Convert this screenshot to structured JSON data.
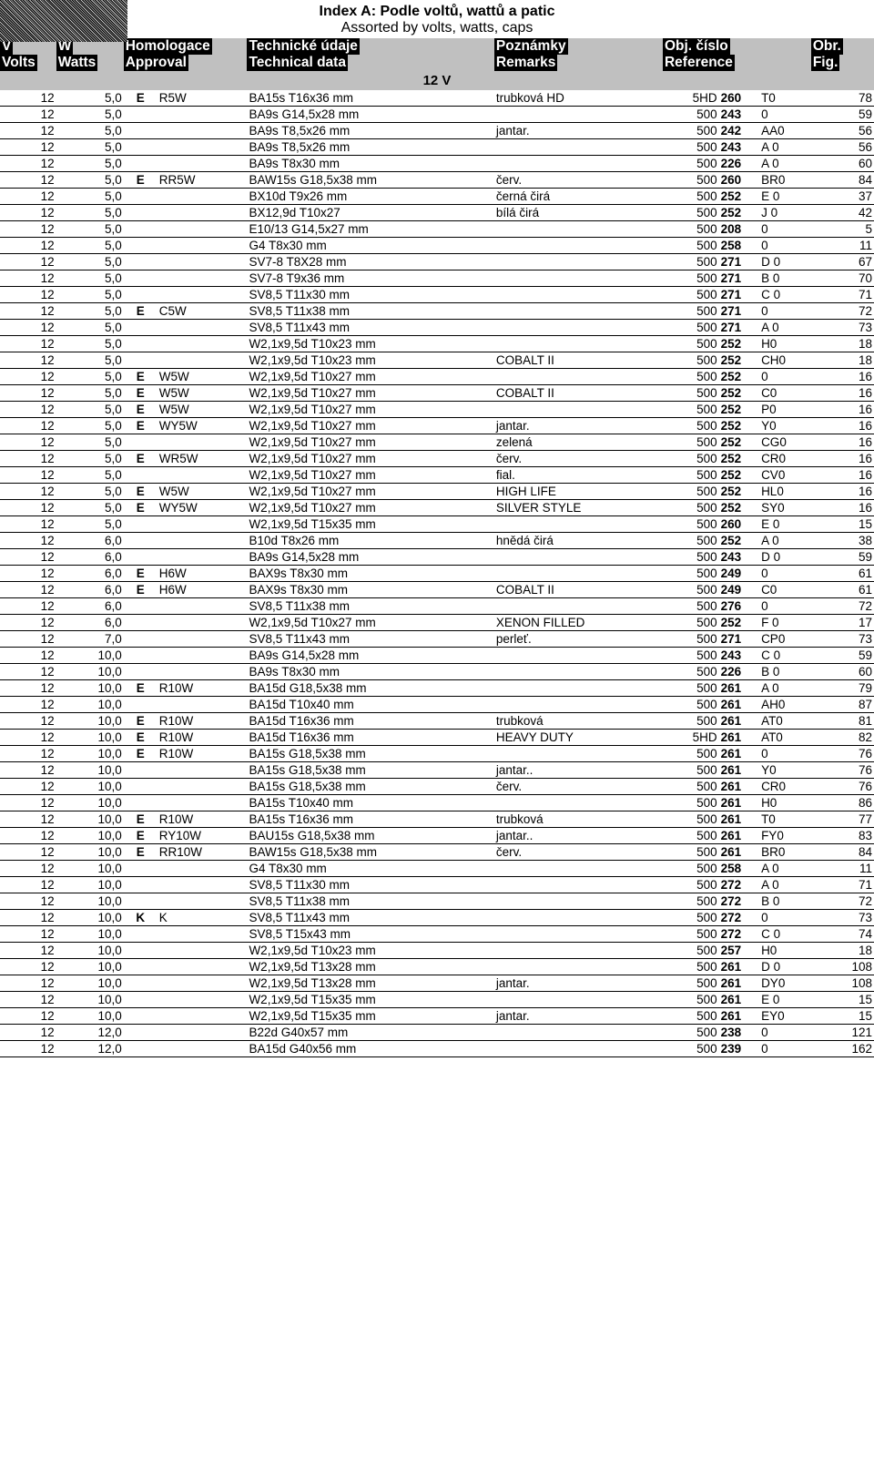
{
  "title": "Index A: Podle voltů, wattů a patic",
  "subtitle": "Assorted by volts, watts, caps",
  "headers": {
    "v1": "V",
    "v2": "Volts",
    "w1": "W",
    "w2": "Watts",
    "a1": "Homologace",
    "a2": "Approval",
    "t1": "Technické údaje",
    "t2": "Technical data",
    "r1": "Poznámky",
    "r2": "Remarks",
    "ref1": "Obj. číslo",
    "ref2": "Reference",
    "f1": "Obr.",
    "f2": "Fig."
  },
  "section": "12  V",
  "rows": [
    {
      "v": "12",
      "w": "5,0",
      "a1": "E",
      "a2": "R5W",
      "a2small": true,
      "tech": "BA15s T16x36 mm",
      "rem": "trubková HD",
      "ref_a": "5HD",
      "ref_b": "260",
      "ref_c": "T0",
      "ref_small": true,
      "fig": "78"
    },
    {
      "v": "12",
      "w": "5,0",
      "a1": "",
      "a2": "",
      "tech": "BA9s G14,5x28 mm",
      "rem": "",
      "ref_a": "500",
      "ref_b": "243",
      "ref_c": "0",
      "fig": "59"
    },
    {
      "v": "12",
      "w": "5,0",
      "a1": "",
      "a2": "",
      "tech": "BA9s T8,5x26 mm",
      "rem": "jantar.",
      "ref_a": "500",
      "ref_b": "242",
      "ref_c": "AA0",
      "fig": "56"
    },
    {
      "v": "12",
      "w": "5,0",
      "a1": "",
      "a2": "",
      "tech": "BA9s T8,5x26 mm",
      "rem": "",
      "ref_a": "500",
      "ref_b": "243",
      "ref_c": "A   0",
      "fig": "56"
    },
    {
      "v": "12",
      "w": "5,0",
      "a1": "",
      "a2": "",
      "tech": "BA9s T8x30 mm",
      "rem": "",
      "ref_a": "500",
      "ref_b": "226",
      "ref_c": "A   0",
      "fig": "60"
    },
    {
      "v": "12",
      "w": "5,0",
      "a1": "E",
      "a2": "RR5W",
      "tech": "BAW15s G18,5x38 mm",
      "rem": "červ.",
      "ref_a": "500",
      "ref_b": "260",
      "ref_c": "BR0",
      "fig": "84"
    },
    {
      "v": "12",
      "w": "5,0",
      "a1": "",
      "a2": "",
      "tech": "BX10d T9x26 mm",
      "rem": "černá    čirá",
      "ref_a": "500",
      "ref_b": "252",
      "ref_c": "E   0",
      "fig": "37"
    },
    {
      "v": "12",
      "w": "5,0",
      "a1": "",
      "a2": "",
      "tech": "BX12,9d T10x27",
      "rem": "bílá      čirá",
      "ref_a": "500",
      "ref_b": "252",
      "ref_c": "J   0",
      "fig": "42"
    },
    {
      "v": "12",
      "w": "5,0",
      "a1": "",
      "a2": "",
      "tech": "E10/13 G14,5x27 mm",
      "rem": "",
      "ref_a": "500",
      "ref_b": "208",
      "ref_c": "0",
      "fig": "5"
    },
    {
      "v": "12",
      "w": "5,0",
      "a1": "",
      "a2": "",
      "tech": "G4 T8x30 mm",
      "rem": "",
      "ref_a": "500",
      "ref_b": "258",
      "ref_c": "0",
      "fig": "11"
    },
    {
      "v": "12",
      "w": "5,0",
      "a1": "",
      "a2": "",
      "tech": "SV7-8 T8X28 mm",
      "rem": "",
      "ref_a": "500",
      "ref_b": "271",
      "ref_c": "D   0",
      "fig": "67"
    },
    {
      "v": "12",
      "w": "5,0",
      "a1": "",
      "a2": "",
      "tech": "SV7-8 T9x36 mm",
      "rem": "",
      "ref_a": "500",
      "ref_b": "271",
      "ref_c": "B   0",
      "fig": "70"
    },
    {
      "v": "12",
      "w": "5,0",
      "a1": "",
      "a2": "",
      "tech": "SV8,5 T11x30 mm",
      "rem": "",
      "ref_a": "500",
      "ref_b": "271",
      "ref_c": "C   0",
      "fig": "71"
    },
    {
      "v": "12",
      "w": "5,0",
      "a1": "E",
      "a2": "C5W",
      "a2small": true,
      "tech": "SV8,5 T11x38 mm",
      "rem": "",
      "ref_a": "500",
      "ref_b": "271",
      "ref_c": "0",
      "fig": "72"
    },
    {
      "v": "12",
      "w": "5,0",
      "a1": "",
      "a2": "",
      "tech": "SV8,5 T11x43 mm",
      "rem": "",
      "ref_a": "500",
      "ref_b": "271",
      "ref_c": "A   0",
      "fig": "73"
    },
    {
      "v": "12",
      "w": "5,0",
      "a1": "",
      "a2": "",
      "tech": "W2,1x9,5d T10x23 mm",
      "rem": "",
      "ref_a": "500",
      "ref_b": "252",
      "ref_c": "H0",
      "fig": "18"
    },
    {
      "v": "12",
      "w": "5,0",
      "a1": "",
      "a2": "",
      "tech": "W2,1x9,5d T10x23 mm",
      "rem": "COBALT II",
      "ref_a": "500",
      "ref_b": "252",
      "ref_c": "CH0",
      "fig": "18"
    },
    {
      "v": "12",
      "w": "5,0",
      "a1": "E",
      "a2": "W5W",
      "a2small": true,
      "tech": "W2,1x9,5d T10x27 mm",
      "rem": "",
      "ref_a": "500",
      "ref_b": "252",
      "ref_c": "0",
      "fig": "16"
    },
    {
      "v": "12",
      "w": "5,0",
      "a1": "E",
      "a2": "W5W",
      "a2small": true,
      "tech": "W2,1x9,5d T10x27 mm",
      "rem": "COBALT II",
      "ref_a": "500",
      "ref_b": "252",
      "ref_c": "C0",
      "fig": "16"
    },
    {
      "v": "12",
      "w": "5,0",
      "a1": "E",
      "a2": "W5W",
      "a2small": true,
      "tech": "W2,1x9,5d T10x27 mm",
      "rem": "",
      "ref_a": "500",
      "ref_b": "252",
      "ref_c": "P0",
      "fig": "16"
    },
    {
      "v": "12",
      "w": "5,0",
      "a1": "E",
      "a2": "WY5W",
      "tech": "W2,1x9,5d T10x27 mm",
      "rem": "jantar.",
      "ref_a": "500",
      "ref_b": "252",
      "ref_c": "Y0",
      "fig": "16"
    },
    {
      "v": "12",
      "w": "5,0",
      "a1": "",
      "a2": "",
      "tech": "W2,1x9,5d T10x27 mm",
      "rem": "zelená",
      "ref_a": "500",
      "ref_b": "252",
      "ref_c": "CG0",
      "fig": "16"
    },
    {
      "v": "12",
      "w": "5,0",
      "a1": "E",
      "a2": "WR5W",
      "tech": "W2,1x9,5d T10x27 mm",
      "rem": "červ.",
      "ref_a": "500",
      "ref_b": "252",
      "ref_c": "CR0",
      "fig": "16"
    },
    {
      "v": "12",
      "w": "5,0",
      "a1": "",
      "a2": "",
      "tech": "W2,1x9,5d T10x27 mm",
      "rem": "fial.",
      "ref_a": "500",
      "ref_b": "252",
      "ref_c": "CV0",
      "fig": "16"
    },
    {
      "v": "12",
      "w": "5,0",
      "a1": "E",
      "a2": "W5W",
      "a2small": true,
      "tech": "W2,1x9,5d T10x27 mm",
      "rem": "HIGH LIFE",
      "ref_a": "500",
      "ref_b": "252",
      "ref_c": "HL0",
      "fig": "16"
    },
    {
      "v": "12",
      "w": "5,0",
      "a1": "E",
      "a2": "WY5W",
      "tech": "W2,1x9,5d T10x27 mm",
      "rem": "SILVER STYLE",
      "ref_a": "500",
      "ref_b": "252",
      "ref_c": "SY0",
      "fig": "16"
    },
    {
      "v": "12",
      "w": "5,0",
      "a1": "",
      "a2": "",
      "tech": "W2,1x9,5d T15x35 mm",
      "rem": "",
      "ref_a": "500",
      "ref_b": "260",
      "ref_c": "E   0",
      "fig": "15"
    },
    {
      "v": "12",
      "w": "6,0",
      "a1": "",
      "a2": "",
      "tech": "B10d T8x26 mm",
      "rem": "hnědá  čirá",
      "ref_a": "500",
      "ref_b": "252",
      "ref_c": "A   0",
      "fig": "38"
    },
    {
      "v": "12",
      "w": "6,0",
      "a1": "",
      "a2": "",
      "tech": "BA9s G14,5x28 mm",
      "rem": "",
      "ref_a": "500",
      "ref_b": "243",
      "ref_c": "D   0",
      "fig": "59"
    },
    {
      "v": "12",
      "w": "6,0",
      "a1": "E",
      "a2": "H6W",
      "a2small": true,
      "tech": "BAX9s T8x30 mm",
      "rem": "",
      "ref_a": "500",
      "ref_b": "249",
      "ref_c": "0",
      "fig": "61"
    },
    {
      "v": "12",
      "w": "6,0",
      "a1": "E",
      "a2": "H6W",
      "a2small": true,
      "tech": "BAX9s T8x30 mm",
      "rem": "COBALT II",
      "ref_a": "500",
      "ref_b": "249",
      "ref_c": "C0",
      "fig": "61"
    },
    {
      "v": "12",
      "w": "6,0",
      "a1": "",
      "a2": "",
      "tech": "SV8,5 T11x38 mm",
      "rem": "",
      "ref_a": "500",
      "ref_b": "276",
      "ref_c": "0",
      "fig": "72"
    },
    {
      "v": "12",
      "w": "6,0",
      "a1": "",
      "a2": "",
      "tech": "W2,1x9,5d T10x27 mm",
      "rem": "XENON FILLED",
      "ref_a": "500",
      "ref_b": "252",
      "ref_c": "F   0",
      "fig": "17"
    },
    {
      "v": "12",
      "w": "7,0",
      "a1": "",
      "a2": "",
      "tech": "SV8,5 T11x43 mm",
      "rem": "perleť.",
      "ref_a": "500",
      "ref_b": "271",
      "ref_c": "CP0",
      "fig": "73"
    },
    {
      "v": "12",
      "w": "10,0",
      "a1": "",
      "a2": "",
      "tech": "BA9s G14,5x28 mm",
      "rem": "",
      "ref_a": "500",
      "ref_b": "243",
      "ref_c": "C   0",
      "fig": "59"
    },
    {
      "v": "12",
      "w": "10,0",
      "a1": "",
      "a2": "",
      "tech": "BA9s T8x30 mm",
      "rem": "",
      "ref_a": "500",
      "ref_b": "226",
      "ref_c": "B   0",
      "fig": "60"
    },
    {
      "v": "12",
      "w": "10,0",
      "a1": "E",
      "a2": "R10W",
      "tech": "BA15d G18,5x38 mm",
      "rem": "",
      "ref_a": "500",
      "ref_b": "261",
      "ref_c": "A   0",
      "fig": "79"
    },
    {
      "v": "12",
      "w": "10,0",
      "a1": "",
      "a2": "",
      "tech": "BA15d T10x40 mm",
      "rem": "",
      "ref_a": "500",
      "ref_b": "261",
      "ref_c": "AH0",
      "fig": "87"
    },
    {
      "v": "12",
      "w": "10,0",
      "a1": "E",
      "a2": "R10W",
      "tech": "BA15d T16x36 mm",
      "rem": "trubková",
      "rem_small": true,
      "ref_a": "500",
      "ref_b": "261",
      "ref_c": "AT0",
      "fig": "81"
    },
    {
      "v": "12",
      "w": "10,0",
      "a1": "E",
      "a2": "R10W",
      "tech": "BA15d T16x36 mm",
      "rem": "HEAVY DUTY",
      "ref_a": "5HD",
      "ref_b": "261",
      "ref_c": "AT0",
      "fig": "82"
    },
    {
      "v": "12",
      "w": "10,0",
      "a1": "E",
      "a2": "R10W",
      "tech": "BA15s G18,5x38 mm",
      "rem": "",
      "ref_a": "500",
      "ref_b": "261",
      "ref_c": "0",
      "fig": "76"
    },
    {
      "v": "12",
      "w": "10,0",
      "a1": "",
      "a2": "",
      "tech": "BA15s G18,5x38 mm",
      "rem": "jantar..",
      "ref_a": "500",
      "ref_b": "261",
      "ref_c": "Y0",
      "fig": "76"
    },
    {
      "v": "12",
      "w": "10,0",
      "a1": "",
      "a2": "",
      "tech": "BA15s G18,5x38 mm",
      "rem": "červ.",
      "ref_a": "500",
      "ref_b": "261",
      "ref_c": "CR0",
      "fig": "76"
    },
    {
      "v": "12",
      "w": "10,0",
      "a1": "",
      "a2": "",
      "tech": "BA15s T10x40 mm",
      "rem": "",
      "ref_a": "500",
      "ref_b": "261",
      "ref_c": "H0",
      "fig": "86"
    },
    {
      "v": "12",
      "w": "10,0",
      "a1": "E",
      "a2": "R10W",
      "tech": "BA15s T16x36 mm",
      "rem": "trubková",
      "rem_small": true,
      "ref_a": "500",
      "ref_b": "261",
      "ref_c": "T0",
      "fig": "77"
    },
    {
      "v": "12",
      "w": "10,0",
      "a1": "E",
      "a2": "RY10W",
      "tech": "BAU15s G18,5x38 mm",
      "rem": "jantar..",
      "ref_a": "500",
      "ref_b": "261",
      "ref_c": "FY0",
      "fig": "83"
    },
    {
      "v": "12",
      "w": "10,0",
      "a1": "E",
      "a2": "RR10W",
      "tech": "BAW15s G18,5x38 mm",
      "rem": "červ.",
      "ref_a": "500",
      "ref_b": "261",
      "ref_c": "BR0",
      "fig": "84"
    },
    {
      "v": "12",
      "w": "10,0",
      "a1": "",
      "a2": "",
      "tech": "G4 T8x30 mm",
      "rem": "",
      "ref_a": "500",
      "ref_b": "258",
      "ref_c": "A   0",
      "fig": "11"
    },
    {
      "v": "12",
      "w": "10,0",
      "a1": "",
      "a2": "",
      "tech": "SV8,5 T11x30 mm",
      "rem": "",
      "ref_a": "500",
      "ref_b": "272",
      "ref_c": "A   0",
      "fig": "71"
    },
    {
      "v": "12",
      "w": "10,0",
      "a1": "",
      "a2": "",
      "tech": "SV8,5 T11x38 mm",
      "rem": "",
      "ref_a": "500",
      "ref_b": "272",
      "ref_c": "B   0",
      "fig": "72"
    },
    {
      "v": "12",
      "w": "10,0",
      "a1": "K",
      "a2": "K",
      "tech": "SV8,5 T11x43 mm",
      "rem": "",
      "ref_a": "500",
      "ref_b": "272",
      "ref_c": "0",
      "fig": "73"
    },
    {
      "v": "12",
      "w": "10,0",
      "a1": "",
      "a2": "",
      "tech": "SV8,5 T15x43 mm",
      "rem": "",
      "ref_a": "500",
      "ref_b": "272",
      "ref_c": "C   0",
      "fig": "74"
    },
    {
      "v": "12",
      "w": "10,0",
      "a1": "",
      "a2": "",
      "tech": "W2,1x9,5d T10x23 mm",
      "rem": "",
      "ref_a": "500",
      "ref_b": "257",
      "ref_c": "H0",
      "fig": "18"
    },
    {
      "v": "12",
      "w": "10,0",
      "a1": "",
      "a2": "",
      "tech": "W2,1x9,5d T13x28 mm",
      "rem": "",
      "ref_a": "500",
      "ref_b": "261",
      "ref_c": "D   0",
      "fig": "108"
    },
    {
      "v": "12",
      "w": "10,0",
      "a1": "",
      "a2": "",
      "tech": "W2,1x9,5d T13x28 mm",
      "rem": "jantar.",
      "ref_a": "500",
      "ref_b": "261",
      "ref_c": "DY0",
      "fig": "108"
    },
    {
      "v": "12",
      "w": "10,0",
      "a1": "",
      "a2": "",
      "tech": "W2,1x9,5d T15x35 mm",
      "rem": "",
      "ref_a": "500",
      "ref_b": "261",
      "ref_c": "E   0",
      "fig": "15"
    },
    {
      "v": "12",
      "w": "10,0",
      "a1": "",
      "a2": "",
      "tech": "W2,1x9,5d T15x35 mm",
      "rem": "jantar.",
      "ref_a": "500",
      "ref_b": "261",
      "ref_c": "EY0",
      "fig": "15"
    },
    {
      "v": "12",
      "w": "12,0",
      "a1": "",
      "a2": "",
      "tech": "B22d G40x57 mm",
      "rem": "",
      "ref_a": "500",
      "ref_b": "238",
      "ref_c": "0",
      "fig": "121"
    },
    {
      "v": "12",
      "w": "12,0",
      "a1": "",
      "a2": "",
      "tech": "BA15d G40x56 mm",
      "rem": "",
      "ref_a": "500",
      "ref_b": "239",
      "ref_c": "0",
      "fig": "162"
    }
  ]
}
